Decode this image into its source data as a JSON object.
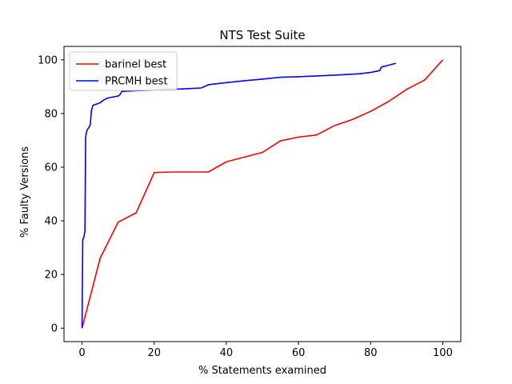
{
  "chart_data": {
    "type": "line",
    "title": "NTS Test Suite",
    "xlabel": "% Statements examined",
    "ylabel": "% Faulty Versions",
    "xlim": [
      -5,
      105
    ],
    "ylim": [
      -5,
      105
    ],
    "xticks": [
      0,
      20,
      40,
      60,
      80,
      100
    ],
    "yticks": [
      0,
      20,
      40,
      60,
      80,
      100
    ],
    "grid": false,
    "legend_position": "top-left",
    "series": [
      {
        "name": "barinel best",
        "color": "#ff0000",
        "x": [
          0,
          5,
          10,
          15,
          20,
          25,
          35,
          40,
          50,
          55,
          60,
          65,
          70,
          75,
          80,
          85,
          90,
          95,
          100
        ],
        "y": [
          0,
          26,
          39.5,
          43,
          58,
          58.2,
          58.2,
          62,
          65.5,
          69.8,
          71.2,
          72,
          75.5,
          77.8,
          80.8,
          84.5,
          89,
          92.5,
          100
        ]
      },
      {
        "name": "PRCMH best",
        "color": "#0000ff",
        "x": [
          0,
          0.2,
          0.5,
          0.8,
          1,
          1.2,
          1.5,
          2,
          2.3,
          2.6,
          3,
          4,
          5,
          6,
          7,
          8,
          10,
          10.5,
          11,
          15,
          20,
          25,
          30,
          33,
          35,
          40,
          45,
          50,
          55,
          60,
          65,
          70,
          77,
          80,
          82.5,
          83,
          85,
          87
        ],
        "y": [
          0,
          33,
          34,
          36,
          71,
          73,
          74,
          75,
          76,
          81,
          83,
          83.5,
          84,
          85,
          85.7,
          86,
          86.5,
          87,
          88.2,
          88.5,
          88.7,
          89,
          89.3,
          89.5,
          90.7,
          91.5,
          92.2,
          92.8,
          93.5,
          93.7,
          94,
          94.3,
          94.8,
          95.3,
          96,
          97.3,
          98,
          98.7
        ]
      }
    ]
  }
}
